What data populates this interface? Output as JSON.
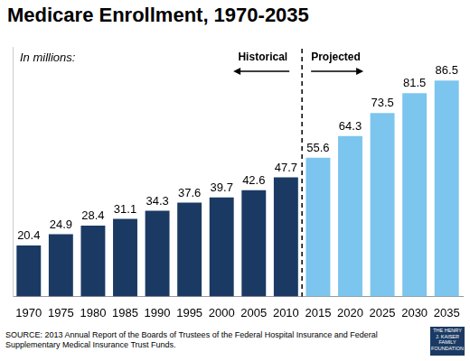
{
  "chart_data": {
    "type": "bar",
    "title": "Medicare Enrollment, 1970-2035",
    "subtitle": "In millions:",
    "categories": [
      "1970",
      "1975",
      "1980",
      "1985",
      "1990",
      "1995",
      "2000",
      "2005",
      "2010",
      "2015",
      "2020",
      "2025",
      "2030",
      "2035"
    ],
    "series": [
      {
        "name": "Historical",
        "color": "#1a3a63",
        "values": [
          20.4,
          24.9,
          28.4,
          31.1,
          34.3,
          37.6,
          39.7,
          42.6,
          47.7,
          null,
          null,
          null,
          null,
          null
        ]
      },
      {
        "name": "Projected",
        "color": "#7cc5ee",
        "values": [
          null,
          null,
          null,
          null,
          null,
          null,
          null,
          null,
          null,
          55.6,
          64.3,
          73.5,
          81.5,
          86.5
        ]
      }
    ],
    "ylim": [
      0,
      100
    ],
    "grid": false,
    "data_labels": true,
    "tick_labels": "x",
    "source": "SOURCE: 2013 Annual Report of the Boards of Trustees of the Federal Hospital Insurance and Federal Supplementary Medical Insurance Trust Funds.",
    "logo": "THE HENRY J. KAISER FAMILY FOUNDATION"
  }
}
